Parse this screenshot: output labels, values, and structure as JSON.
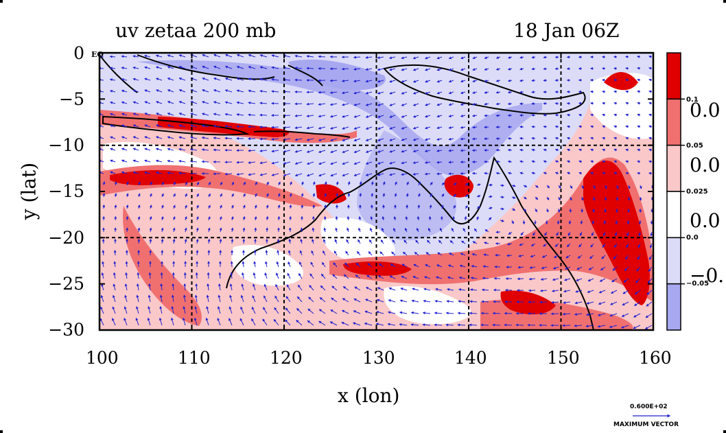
{
  "header": {
    "title_left": "uv zetaa 200 mb",
    "title_right": "18 Jan 06Z"
  },
  "axes": {
    "xlabel": "x (lon)",
    "ylabel": "y (lat)",
    "x_ticks": [
      "100",
      "110",
      "120",
      "130",
      "140",
      "150",
      "160"
    ],
    "y_ticks": [
      "0",
      "−5",
      "−10",
      "−15",
      "−20",
      "−25",
      "−30"
    ],
    "eq_label": "EQ"
  },
  "map": {
    "lon_range": [
      100,
      160
    ],
    "lat_range": [
      -30,
      0
    ],
    "gridlines_lon": [
      110,
      120,
      130,
      140,
      150
    ],
    "gridlines_lat": [
      -10,
      -20
    ],
    "variable": "zetaa",
    "level": "200 mb"
  },
  "colorbar": {
    "levels": [
      {
        "color": "#e00000"
      },
      {
        "color": "#f07070"
      },
      {
        "color": "#fac8c8"
      },
      {
        "color": "#ffffff"
      },
      {
        "color": "#dcdcf8"
      },
      {
        "color": "#a8a8f0"
      }
    ],
    "boundary_labels": [
      "0.1",
      "0.05",
      "0.025",
      "0.0",
      "−0.05"
    ],
    "big_labels": [
      "0.0",
      "0.0",
      "0.0",
      "−0."
    ]
  },
  "vector_legend": {
    "value": "0.600E+02",
    "label": "MAXIMUM VECTOR"
  },
  "colors": {
    "strong_pos": "#e00000",
    "mid_pos": "#f07070",
    "weak_pos": "#fac8c8",
    "weak_neg": "#dcdcf8",
    "strong_neg": "#a8a8f0",
    "vectors": "#2020d0",
    "coast": "#000000"
  }
}
